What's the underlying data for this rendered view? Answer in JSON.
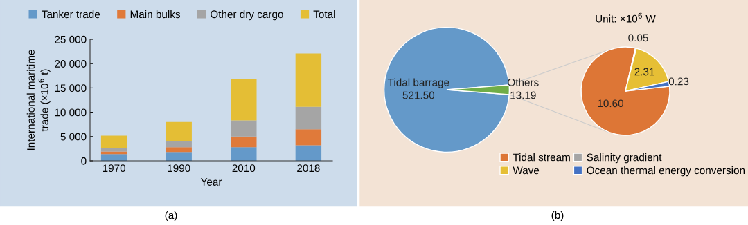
{
  "chart_data": [
    {
      "type": "bar",
      "stacked": true,
      "xlabel": "Year",
      "ylabel": "International maritime\ntrade (×10$^{6}$ t)",
      "categories": [
        "1970",
        "1990",
        "2010",
        "2018"
      ],
      "series": [
        {
          "name": "Tanker trade",
          "color": "#6499c9",
          "values": [
            1400,
            1800,
            2800,
            3200
          ]
        },
        {
          "name": "Main bulks",
          "color": "#e07a3a",
          "values": [
            500,
            1000,
            2200,
            3300
          ]
        },
        {
          "name": "Other dry cargo",
          "color": "#a5a5a5",
          "values": [
            700,
            1200,
            3300,
            4600
          ]
        },
        {
          "name": "Total",
          "color": "#e4be35",
          "values": [
            2600,
            4000,
            8500,
            11000
          ]
        }
      ],
      "ylim": [
        0,
        25000
      ],
      "yticks": [
        0,
        {
          "value": 5000,
          "label": "5 000"
        },
        {
          "value": 10000,
          "label": "10 000"
        },
        {
          "value": 15000,
          "label": "15 000"
        },
        {
          "value": 20000,
          "label": "20 000"
        },
        {
          "value": 25000,
          "label": "25 000"
        }
      ],
      "grid": false,
      "legend": "top",
      "annotations": [
        "(a)"
      ]
    },
    {
      "type": "pie",
      "categories": [
        "Tidal barrage",
        "Others"
      ],
      "values": [
        521.5,
        13.19
      ],
      "colors": [
        "#6499c9",
        "#70ad47"
      ],
      "value_labels": [
        "521.50",
        "13.19"
      ],
      "annotations": [
        "(b)"
      ]
    },
    {
      "type": "pie",
      "title": "Unit: ×10$^{6}$ W",
      "categories": [
        "Tidal stream",
        "Salinity gradient",
        "Wave",
        "Ocean thermal energy conversion"
      ],
      "values": [
        10.6,
        0.05,
        2.31,
        0.23
      ],
      "colors": [
        "#dd7636",
        "#a5a5a5",
        "#e6bf35",
        "#4472c4"
      ],
      "value_labels": [
        "10.60",
        "0.05",
        "2.31",
        "0.23"
      ],
      "legend": "bottom"
    }
  ]
}
